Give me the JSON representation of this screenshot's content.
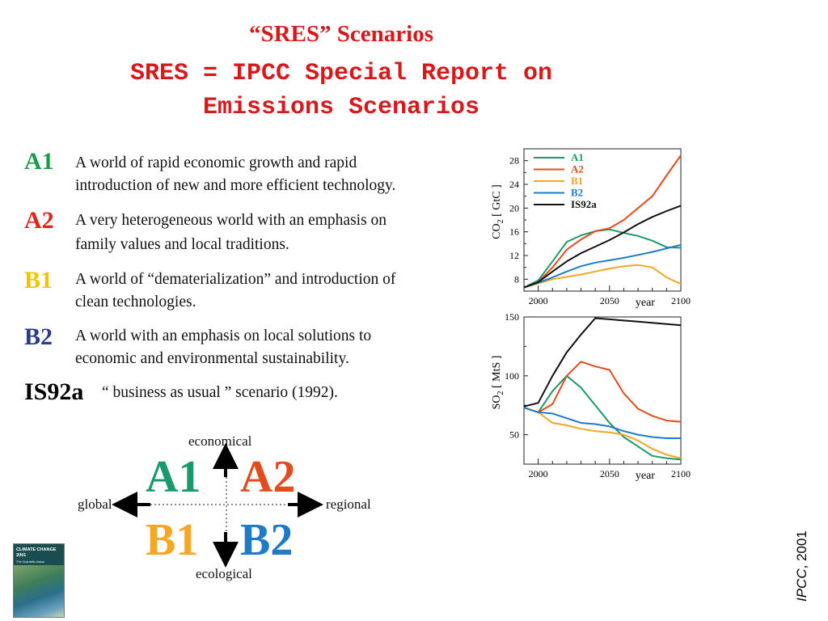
{
  "title": {
    "line1": "“SRES” Scenarios",
    "line2": "SRES = IPCC Special Report on",
    "line3": "Emissions Scenarios"
  },
  "scenarios": [
    {
      "code": "A1",
      "color": "#1a9a4a",
      "desc1": "A world of rapid economic growth and rapid",
      "desc2": "introduction of new and more efficient technology."
    },
    {
      "code": "A2",
      "color": "#e2231a",
      "desc1": "A very heterogeneous world with an emphasis on",
      "desc2": "family values and local traditions."
    },
    {
      "code": "B1",
      "color": "#f2c400",
      "desc1": "A world of “dematerialization” and introduction of",
      "desc2": "clean technologies."
    },
    {
      "code": "B2",
      "color": "#2b3990",
      "desc1": "A world with an emphasis on local solutions to",
      "desc2": "economic and environmental sustainability."
    },
    {
      "code": "IS92a",
      "color": "#000000",
      "desc1": "“ business as usual ” scenario (1992).",
      "desc2": ""
    }
  ],
  "quadrant": {
    "a1": "A1",
    "a2": "A2",
    "b1": "B1",
    "b2": "B2",
    "colors": {
      "a1": "#1a9a6a",
      "a2": "#e34a1c",
      "b1": "#f5a623",
      "b2": "#1f7bc8"
    },
    "top": "economical",
    "bottom": "ecological",
    "left": "global",
    "right": "regional"
  },
  "cover": {
    "title": "CLIMATE CHANGE 2001",
    "subtitle": "The Scientific Basis"
  },
  "attribution": {
    "italic": "IPCC",
    "rest": ", 2001"
  },
  "chart_data": [
    {
      "type": "line",
      "ylabel": "CO2 [ GtC ]",
      "xlabel": "year",
      "xlim": [
        1990,
        2100
      ],
      "ylim": [
        6,
        30
      ],
      "x_ticks": [
        2000,
        2050,
        2100
      ],
      "y_ticks": [
        8,
        12,
        16,
        20,
        24,
        28
      ],
      "legend_position": "top-left",
      "x": [
        1990,
        2000,
        2010,
        2020,
        2030,
        2040,
        2050,
        2060,
        2070,
        2080,
        2090,
        2100
      ],
      "series": [
        {
          "name": "A1",
          "color": "#1a9a6a",
          "values": [
            6.6,
            7.8,
            11.0,
            14.3,
            15.4,
            16.1,
            16.4,
            15.8,
            15.3,
            14.5,
            13.4,
            13.3
          ]
        },
        {
          "name": "A2",
          "color": "#e34a1c",
          "values": [
            6.6,
            7.5,
            10.0,
            13.0,
            14.7,
            16.1,
            16.6,
            18.0,
            20.0,
            22.0,
            25.5,
            28.9
          ]
        },
        {
          "name": "B1",
          "color": "#f5a623",
          "values": [
            6.6,
            7.3,
            8.0,
            8.4,
            8.8,
            9.3,
            9.8,
            10.2,
            10.4,
            10.0,
            8.3,
            7.2
          ]
        },
        {
          "name": "B2",
          "color": "#1f7bc8",
          "values": [
            6.6,
            7.4,
            8.3,
            9.3,
            10.2,
            10.8,
            11.2,
            11.6,
            12.1,
            12.6,
            13.2,
            13.8
          ]
        },
        {
          "name": "IS92a",
          "color": "#111111",
          "values": [
            6.6,
            7.5,
            9.3,
            11.0,
            12.4,
            13.5,
            14.6,
            15.9,
            17.3,
            18.5,
            19.5,
            20.4
          ]
        }
      ]
    },
    {
      "type": "line",
      "ylabel": "SO2 [ MtS ]",
      "xlabel": "year",
      "xlim": [
        1990,
        2100
      ],
      "ylim": [
        25,
        150
      ],
      "x_ticks": [
        2000,
        2050,
        2100
      ],
      "y_ticks": [
        50,
        100,
        150
      ],
      "x": [
        1990,
        2000,
        2010,
        2020,
        2030,
        2040,
        2050,
        2060,
        2070,
        2080,
        2090,
        2100
      ],
      "series": [
        {
          "name": "A1",
          "color": "#1a9a6a",
          "values": [
            73,
            69,
            87,
            100,
            90,
            75,
            60,
            48,
            40,
            32,
            30,
            29
          ]
        },
        {
          "name": "A2",
          "color": "#e34a1c",
          "values": [
            73,
            69,
            76,
            100,
            112,
            108,
            105,
            85,
            72,
            66,
            62,
            61
          ]
        },
        {
          "name": "B1",
          "color": "#f5a623",
          "values": [
            73,
            69,
            60,
            58,
            55,
            53,
            52,
            50,
            45,
            38,
            33,
            30
          ]
        },
        {
          "name": "B2",
          "color": "#1f7bc8",
          "values": [
            73,
            69,
            68,
            64,
            60,
            59,
            57,
            53,
            50,
            48,
            47,
            47
          ]
        },
        {
          "name": "IS92a",
          "color": "#111111",
          "values": [
            74,
            77,
            100,
            120,
            135,
            149,
            148,
            147,
            146,
            145,
            144,
            143
          ]
        }
      ]
    }
  ]
}
